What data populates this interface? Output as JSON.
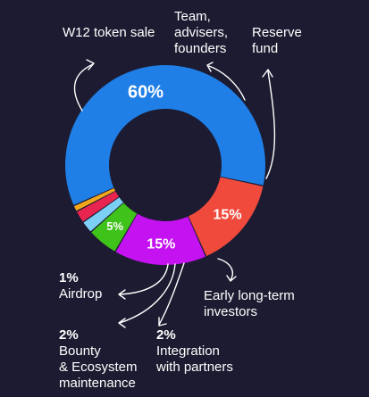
{
  "colors": {
    "background": "#1c1b31",
    "token_sale": "#1f7fe6",
    "team": "#f04a3d",
    "reserve": "#c412f0",
    "early_investors": "#3fc21a",
    "integration": "#7cd0f5",
    "bounty": "#e8254f",
    "airdrop": "#f2a81c"
  },
  "chart_data": {
    "type": "pie",
    "donut": true,
    "slices": [
      {
        "name": "W12 token sale",
        "value": 60,
        "label": "60%",
        "color": "#1f7fe6"
      },
      {
        "name": "Team, advisers, founders",
        "value": 15,
        "label": "15%",
        "color": "#f04a3d"
      },
      {
        "name": "Reserve fund",
        "value": 15,
        "label": "15%",
        "color": "#c412f0"
      },
      {
        "name": "Early long-term investors",
        "value": 5,
        "label": "5%",
        "color": "#3fc21a"
      },
      {
        "name": "Integration with partners",
        "value": 2,
        "label": "2%",
        "color": "#7cd0f5"
      },
      {
        "name": "Bounty & Ecosystem maintenance",
        "value": 2,
        "label": "2%",
        "color": "#e8254f"
      },
      {
        "name": "Airdrop",
        "value": 1,
        "label": "1%",
        "color": "#f2a81c"
      }
    ]
  },
  "labels": {
    "token_sale": "W12 token sale",
    "team": "Team,\nadvisers,\nfounders",
    "reserve": "Reserve\nfund",
    "early_investors": "Early long-term\ninvestors",
    "integration_pct": "2%",
    "integration": "Integration\nwith partners",
    "bounty_pct": "2%",
    "bounty": "Bounty\n& Ecosystem\nmaintenance",
    "airdrop_pct": "1%",
    "airdrop": "Airdrop"
  }
}
